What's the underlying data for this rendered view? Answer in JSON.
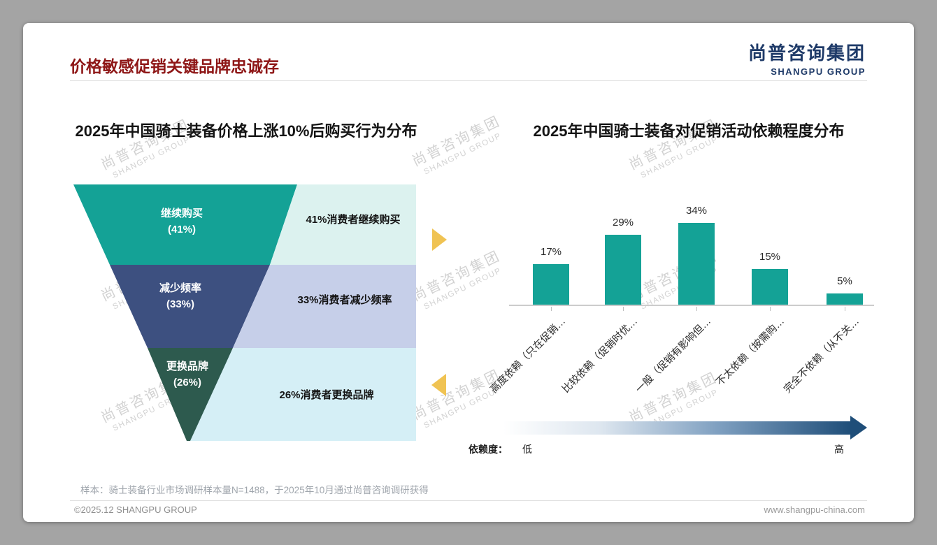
{
  "slide": {
    "title": "价格敏感促销关键品牌忠诚存",
    "logo_cn": "尚普咨询集团",
    "logo_en": "SHANGPU GROUP",
    "watermark_cn": "尚普咨询集团",
    "watermark_en": "SHANGPU GROUP",
    "sample_note": "样本：骑士装备行业市场调研样本量N=1488，于2025年10月通过尚普咨询调研获得",
    "footer_left": "©2025.12 SHANGPU GROUP",
    "footer_right": "www.shangpu-china.com"
  },
  "colors": {
    "title_red": "#8e1616",
    "logo_navy": "#1e3a68",
    "gold_arrow": "#f0c353",
    "gradient_end": "#1f4e79"
  },
  "chart_data": [
    {
      "type": "funnel",
      "title": "2025年中国骑士装备价格上涨10%后购买行为分布",
      "levels": [
        {
          "label": "继续购买",
          "pct_text": "(41%)",
          "value": 41,
          "annotation": "41%消费者继续购买",
          "color": "#14a296",
          "annotation_bg": "#dcf2ef"
        },
        {
          "label": "减少频率",
          "pct_text": "(33%)",
          "value": 33,
          "annotation": "33%消费者减少频率",
          "color": "#3d5080",
          "annotation_bg": "#c6cfe9"
        },
        {
          "label": "更换品牌",
          "pct_text": "(26%)",
          "value": 26,
          "annotation": "26%消费者更换品牌",
          "color": "#2d5a4e",
          "annotation_bg": "#d5eff6"
        }
      ]
    },
    {
      "type": "bar",
      "title": "2025年中国骑士装备对促销活动依赖程度分布",
      "categories": [
        "高度依赖（只在促销…",
        "比较依赖（促销时优…",
        "一般（促销有影响但…",
        "不太依赖（按需购…",
        "完全不依赖（从不关…"
      ],
      "values": [
        17,
        29,
        34,
        15,
        5
      ],
      "value_labels": [
        "17%",
        "29%",
        "34%",
        "15%",
        "5%"
      ],
      "unit": "%",
      "ylim": [
        0,
        40
      ],
      "bar_color": "#14a296",
      "grid": false,
      "axis_note": {
        "label": "依赖度：",
        "low": "低",
        "high": "高"
      }
    }
  ]
}
